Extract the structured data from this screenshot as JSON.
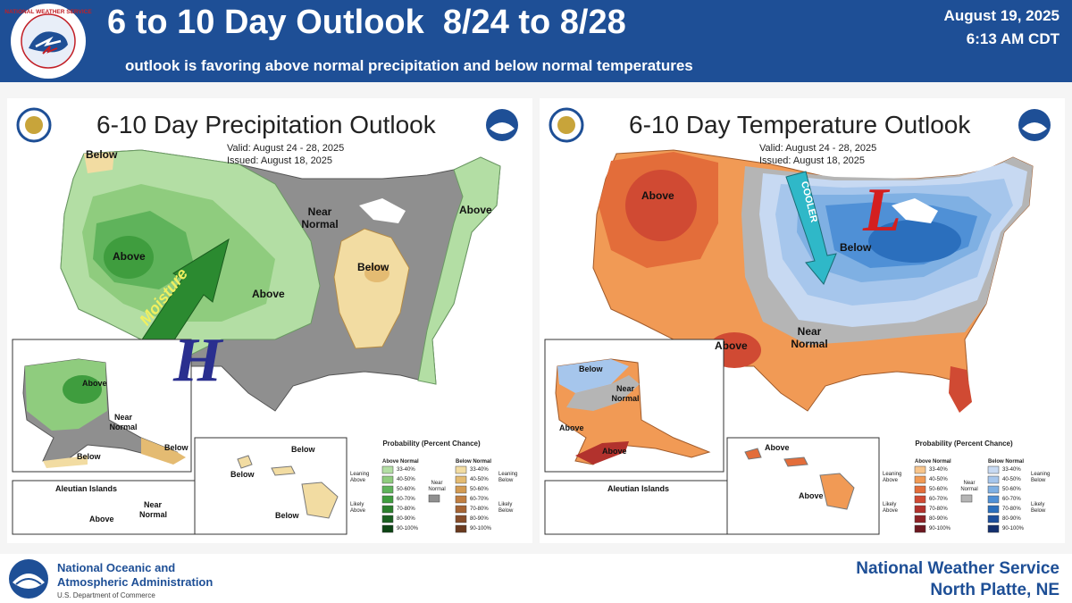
{
  "header": {
    "logo_icon": "nws-logo-icon",
    "logo_text": "NATIONAL WEATHER SERVICE",
    "title": "6 to 10 Day Outlook  8/24 to 8/28",
    "subtitle": "outlook is favoring above normal precipitation and below normal temperatures",
    "date": "August 19, 2025",
    "time": "6:13 AM CDT",
    "background_color": "#1e4f96"
  },
  "precip_map": {
    "title": "6-10 Day Precipitation Outlook",
    "valid": "Valid:  August 24 - 28, 2025",
    "issued": "Issued:  August 18, 2025",
    "labels": {
      "below_nw": "Below",
      "above_west": "Above",
      "above_plains": "Above",
      "near_normal": "Near Normal",
      "below_midwest": "Below",
      "above_east": "Above",
      "moisture": "Moisture",
      "high": "H"
    },
    "alaska_labels": {
      "above": "Above",
      "near_normal": "Near Normal",
      "below": "Below",
      "below_se": "Below",
      "aleutian": "Aleutian Islands",
      "aleutian_above": "Above",
      "aleutian_near": "Near Normal"
    },
    "hawaii_labels": [
      "Below",
      "Below",
      "Below"
    ],
    "legend": {
      "title": "Probability (Percent Chance)",
      "above_header": "Above Normal",
      "below_header": "Below Normal",
      "near_label": "Near Normal",
      "leaning_above": "Leaning Above",
      "likely_above": "Likely Above",
      "leaning_below": "Leaning Below",
      "likely_below": "Likely Below",
      "ranges": [
        "33-40%",
        "40-50%",
        "50-60%",
        "60-70%",
        "70-80%",
        "80-90%",
        "90-100%"
      ],
      "above_colors": [
        "#b3dea4",
        "#8fcc7e",
        "#5fb35b",
        "#3f9d3e",
        "#2b7f2c",
        "#1a6020",
        "#0d4414"
      ],
      "below_colors": [
        "#f2dca2",
        "#e4bb72",
        "#d39b53",
        "#c17f42",
        "#a56434",
        "#864d2a",
        "#6a3a1f"
      ]
    }
  },
  "temp_map": {
    "title": "6-10 Day Temperature Outlook",
    "valid": "Valid:  August 24 - 28, 2025",
    "issued": "Issued:  August 18, 2025",
    "labels": {
      "above_nw": "Above",
      "below_ne": "Below",
      "cooler": "COOLER",
      "low": "L",
      "above_sw": "Above",
      "near_normal": "Near Normal"
    },
    "alaska_labels": {
      "below": "Below",
      "near_normal": "Near Normal",
      "above": "Above",
      "above_s": "Above",
      "aleutian": "Aleutian Islands"
    },
    "hawaii_labels": [
      "Above",
      "Above"
    ],
    "legend": {
      "title": "Probability (Percent Chance)",
      "above_header": "Above Normal",
      "below_header": "Below Normal",
      "near_label": "Near Normal",
      "leaning_above": "Leaning Above",
      "likely_above": "Likely Above",
      "leaning_below": "Leaning Below",
      "likely_below": "Likely Below",
      "ranges": [
        "33-40%",
        "40-50%",
        "50-60%",
        "60-70%",
        "70-80%",
        "80-90%",
        "90-100%"
      ],
      "above_colors": [
        "#f8c58c",
        "#f19a55",
        "#e36d3a",
        "#d04a33",
        "#b2322d",
        "#8e2226",
        "#6d1820"
      ],
      "below_colors": [
        "#c7d9f2",
        "#a6c6ec",
        "#7fb0e3",
        "#4f90d6",
        "#2b6fbd",
        "#1d4f9c",
        "#14306e"
      ]
    }
  },
  "footer": {
    "noaa_logo_icon": "noaa-logo-icon",
    "noaa_line1": "National Oceanic and",
    "noaa_line2": "Atmospheric Administration",
    "noaa_dept": "U.S. Department of Commerce",
    "office_line1": "National Weather Service",
    "office_line2": "North Platte, NE"
  }
}
